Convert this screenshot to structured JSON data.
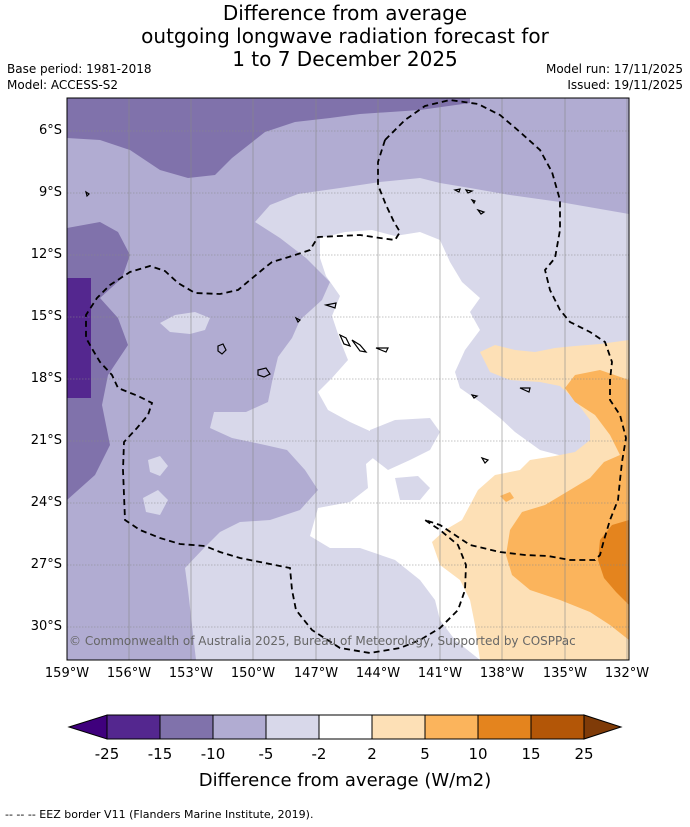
{
  "title": {
    "line1": "Difference from average",
    "line2": "outgoing longwave radiation forecast for",
    "line3": "1 to 7 December 2025"
  },
  "meta": {
    "base_period": "Base period: 1981-2018",
    "model": "Model: ACCESS-S2",
    "model_run": "Model run: 17/11/2025",
    "issued": "Issued: 19/11/2025"
  },
  "map": {
    "credit": "© Commonwealth of Australia 2025, Bureau of Meteorology, Supported by COSPPac",
    "lon_labels": [
      "159°W",
      "156°W",
      "153°W",
      "150°W",
      "147°W",
      "144°W",
      "141°W",
      "138°W",
      "135°W",
      "132°W"
    ],
    "lat_labels": [
      "6°S",
      "9°S",
      "12°S",
      "15°S",
      "18°S",
      "21°S",
      "24°S",
      "27°S",
      "30°S"
    ]
  },
  "colorbar": {
    "ticks": [
      "-25",
      "-15",
      "-10",
      "-5",
      "-2",
      "2",
      "5",
      "10",
      "15",
      "25"
    ],
    "colors": {
      "below_min": "#3f007d",
      "b1": "#54278f",
      "b2": "#8072ab",
      "b3": "#b1acd2",
      "b4": "#d8d8ea",
      "b5": "#ffffff",
      "b6": "#fde0b6",
      "b7": "#fbb45c",
      "b8": "#e4841e",
      "b9": "#b35607",
      "above_max": "#7f3b08"
    },
    "title": "Difference from average (W/m2)"
  },
  "footnote": "--  --  -- EEZ border V11 (Flanders Marine Institute, 2019)."
}
